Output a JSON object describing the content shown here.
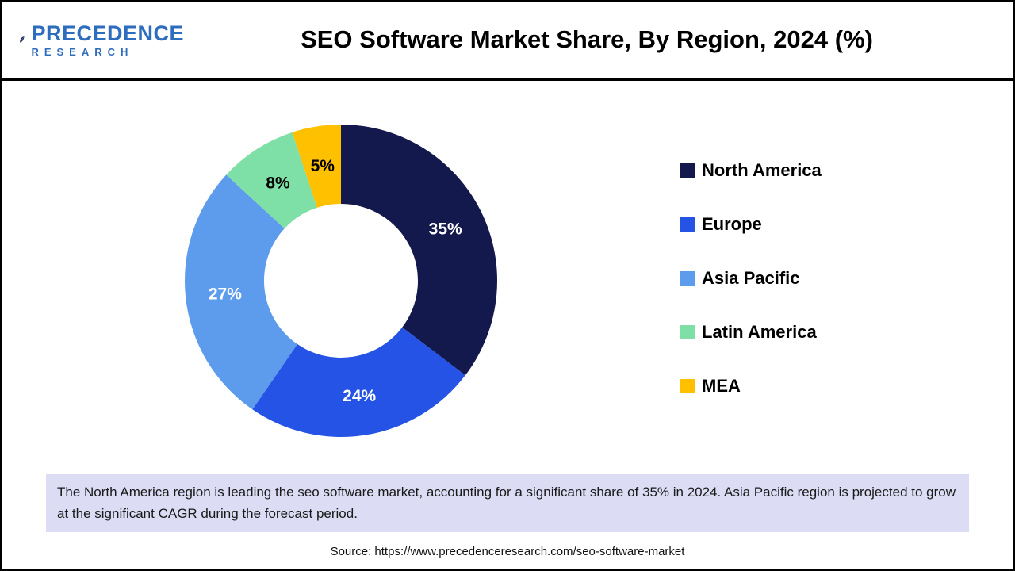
{
  "header": {
    "logo_line1": "PRECEDENCE",
    "logo_line2": "RESEARCH",
    "title": "SEO Software Market Share, By Region, 2024 (%)"
  },
  "chart_data": {
    "type": "pie",
    "subtype": "donut",
    "title": "SEO Software Market Share, By Region, 2024 (%)",
    "unit": "%",
    "categories": [
      "North America",
      "Europe",
      "Asia Pacific",
      "Latin America",
      "MEA"
    ],
    "values": [
      35,
      24,
      27,
      8,
      5
    ],
    "colors": [
      "#14194d",
      "#2453e6",
      "#5d9cec",
      "#7ee0a6",
      "#ffc000"
    ],
    "label_colors": [
      "#ffffff",
      "#ffffff",
      "#ffffff",
      "#000000",
      "#000000"
    ],
    "legend_position": "right",
    "start_angle_deg": 0,
    "direction": "clockwise",
    "inner_radius_ratio": 0.49
  },
  "note": "The North America region is leading the seo software market, accounting for a significant share of 35% in 2024. Asia Pacific region is projected to grow at the significant CAGR during the forecast period.",
  "source": "Source: https://www.precedenceresearch.com/seo-software-market"
}
